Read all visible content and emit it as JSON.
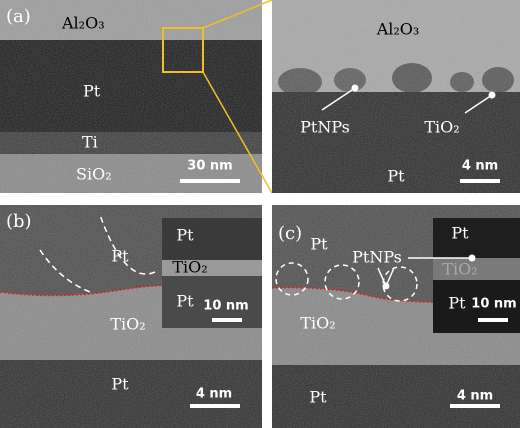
{
  "panel_a": {
    "label": "(a)",
    "overview": {
      "top_layer": "Al₂O₃",
      "middle_layer": "Pt",
      "thin_layer": "Ti",
      "substrate": "SiO₂",
      "scale_bar": "30 nm"
    },
    "zoom": {
      "top_layer": "Al₂O₃",
      "particles": "PtNPs",
      "interlayer": "TiO₂",
      "bottom_layer": "Pt",
      "scale_bar": "4 nm"
    }
  },
  "panel_b": {
    "label": "(b)",
    "top_layer": "Pt",
    "middle_layer": "TiO₂",
    "bottom_layer": "Pt",
    "scale_bar": "4 nm",
    "inset": {
      "top_layer": "Pt",
      "middle_layer": "TiO₂",
      "bottom_layer": "Pt",
      "scale_bar": "10 nm"
    }
  },
  "panel_c": {
    "label": "(c)",
    "top_layer": "Pt",
    "particles": "PtNPs",
    "middle_layer": "TiO₂",
    "bottom_layer": "Pt",
    "scale_bar": "4 nm",
    "inset": {
      "top_layer": "Pt",
      "middle_layer": "TiO₂",
      "bottom_layer": "Pt",
      "scale_bar": "10 nm"
    }
  }
}
